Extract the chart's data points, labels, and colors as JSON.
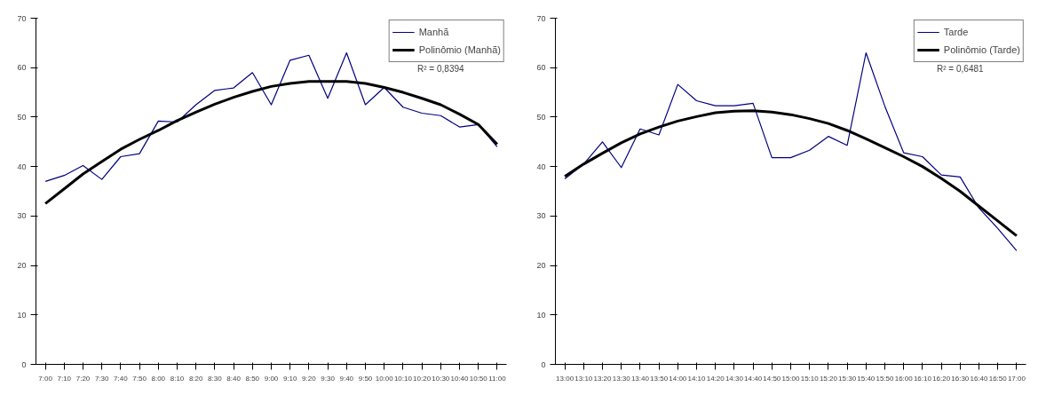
{
  "chart_data": [
    {
      "type": "line",
      "categories": [
        "7:00",
        "7:10",
        "7:20",
        "7:30",
        "7:40",
        "7:50",
        "8:00",
        "8:10",
        "8:20",
        "8:30",
        "8:40",
        "8:50",
        "9:00",
        "9:10",
        "9:20",
        "9:30",
        "9:40",
        "9:50",
        "10:00",
        "10:10",
        "10:20",
        "10:30",
        "10:40",
        "10:50",
        "11:00"
      ],
      "series": [
        {
          "name": "Manhã",
          "color": "#000080",
          "values": [
            37,
            38.2,
            40.2,
            37.4,
            42,
            42.6,
            49.2,
            49,
            52.5,
            55.4,
            55.9,
            59,
            52.5,
            61.5,
            62.5,
            53.8,
            63,
            52.5,
            56,
            52,
            50.8,
            50.3,
            48,
            48.5,
            44
          ]
        },
        {
          "name": "Polinômio (Manhã)",
          "color": "#000000",
          "values": [
            32.5,
            35.5,
            38.5,
            41,
            43.5,
            45.5,
            47.3,
            49.3,
            51,
            52.6,
            54,
            55.2,
            56.2,
            56.8,
            57.2,
            57.2,
            57.2,
            56.8,
            56,
            55,
            53.8,
            52.5,
            50.6,
            48.5,
            44.5
          ]
        }
      ],
      "ylim": [
        0,
        70
      ],
      "yticks": [
        0,
        10,
        20,
        30,
        40,
        50,
        60,
        70
      ],
      "legend": "top right",
      "annotations": [
        "R² = 0,8394"
      ]
    },
    {
      "type": "line",
      "categories": [
        "13:00",
        "13:10",
        "13:20",
        "13:30",
        "13:40",
        "13:50",
        "14:00",
        "14:10",
        "14:20",
        "14:30",
        "14:40",
        "14:50",
        "15:00",
        "15:10",
        "15:20",
        "15:30",
        "15:40",
        "15:50",
        "16:00",
        "16:10",
        "16:20",
        "16:30",
        "16:40",
        "16:50",
        "17:00"
      ],
      "series": [
        {
          "name": "Tarde",
          "color": "#000080",
          "values": [
            37.5,
            40.5,
            45,
            39.8,
            47.6,
            46.4,
            56.6,
            53.3,
            52.3,
            52.3,
            52.8,
            41.8,
            41.8,
            43.3,
            46.1,
            44.3,
            63,
            52.2,
            42.8,
            42,
            38.3,
            37.9,
            31.6,
            27.5,
            23
          ]
        },
        {
          "name": "Polinômio (Tarde)",
          "color": "#000000",
          "values": [
            38,
            40.5,
            42.7,
            44.8,
            46.6,
            48,
            49.2,
            50.1,
            50.9,
            51.2,
            51.3,
            51,
            50.5,
            49.7,
            48.7,
            47.3,
            45.6,
            43.8,
            42,
            40,
            37.6,
            35,
            32,
            29,
            26
          ]
        }
      ],
      "ylim": [
        0,
        70
      ],
      "yticks": [
        0,
        10,
        20,
        30,
        40,
        50,
        60,
        70
      ],
      "legend": "top right",
      "annotations": [
        "R² = 0,6481"
      ]
    }
  ]
}
